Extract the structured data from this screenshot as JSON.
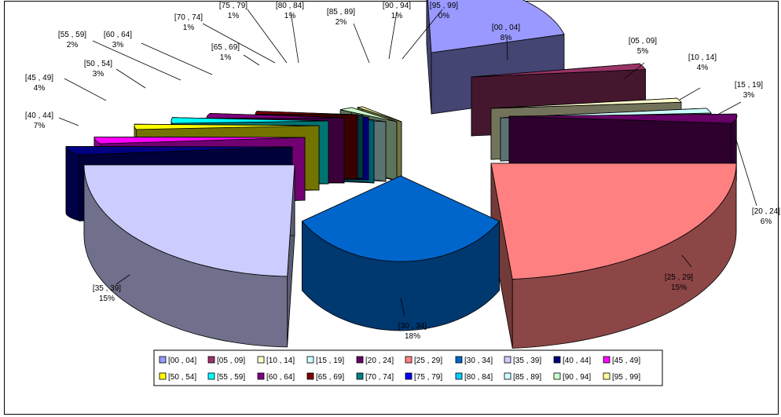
{
  "chart_data": {
    "type": "pie",
    "title": "",
    "categories": [
      "[00 , 04]",
      "[05 , 09]",
      "[10 , 14]",
      "[15 , 19]",
      "[20 , 24]",
      "[25 , 29]",
      "[30 , 34]",
      "[35 , 39]",
      "[40 , 44]",
      "[45 , 49]",
      "[50 , 54]",
      "[55 , 59]",
      "[60 , 64]",
      "[65 , 69]",
      "[70 , 74]",
      "[75 , 79]",
      "[80 , 84]",
      "[85 , 89]",
      "[90 , 94]",
      "[95 , 99]"
    ],
    "values": [
      8,
      5,
      4,
      3,
      6,
      15,
      18,
      15,
      7,
      4,
      3,
      2,
      3,
      1,
      1,
      1,
      1,
      2,
      1,
      0
    ],
    "data_labels": [
      "8%",
      "5%",
      "4%",
      "3%",
      "6%",
      "15%",
      "18%",
      "15%",
      "7%",
      "4%",
      "3%",
      "2%",
      "3%",
      "1%",
      "1%",
      "1%",
      "1%",
      "2%",
      "1%",
      "0%"
    ],
    "colors": [
      "#9999FF",
      "#993366",
      "#FFFFCC",
      "#CCFFFF",
      "#660066",
      "#FF8080",
      "#0066CC",
      "#CCCCFF",
      "#000080",
      "#FF00FF",
      "#FFFF00",
      "#00FFFF",
      "#800080",
      "#800000",
      "#008080",
      "#0000FF",
      "#00CCFF",
      "#CCFFFF",
      "#CCFFCC",
      "#FFFF99"
    ],
    "exploded": true,
    "three_d": true,
    "legend_position": "bottom"
  }
}
